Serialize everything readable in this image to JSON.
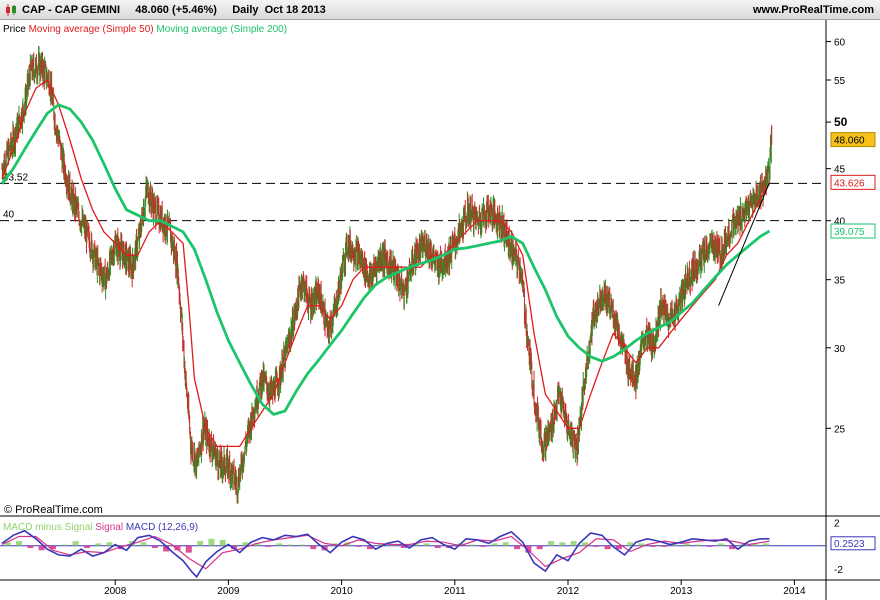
{
  "header": {
    "ticker": "CAP - CAP GEMINI",
    "last": "48.060 (+5.46%)",
    "period": "Daily",
    "date": "Oct 18 2013",
    "site": "www.ProRealTime.com"
  },
  "footer": {
    "copyright": "© ProRealTime.com"
  },
  "colors": {
    "price_up": "#2e8b22",
    "price_down": "#cc2a2a",
    "ma50": "#e01b1b",
    "ma200": "#1cc46a",
    "macd": "#3a38b8",
    "signal": "#d6338a",
    "histogram": "#8fd36a",
    "axis_text": "#000000"
  },
  "chart_data": [
    {
      "type": "line",
      "title": "",
      "scale": "log",
      "ylim": [
        20.5,
        63
      ],
      "x_ticks": [
        "2008",
        "2009",
        "2010",
        "2011",
        "2012",
        "2013",
        "2014"
      ],
      "y_ticks": [
        25,
        30,
        35,
        40,
        45,
        50,
        55,
        60
      ],
      "legend": [
        "Price",
        "Moving average (Simple 50)",
        "Moving average (Simple 200)"
      ],
      "legend_placement": "top-left",
      "levels": [
        {
          "value": 43.52,
          "label": "43.52"
        },
        {
          "value": 40,
          "label": "40"
        }
      ],
      "price_tags": [
        {
          "label": "48.060",
          "value": 48.06,
          "color": "#f6c11a"
        },
        {
          "label": "43.626",
          "value": 43.626,
          "color": "#e01b1b"
        },
        {
          "label": "39.075",
          "value": 39.075,
          "color": "#1cc46a"
        }
      ],
      "trendline": {
        "from": {
          "x": 2013.33,
          "y": 33
        },
        "to": {
          "x": 2013.78,
          "y": 43.6
        }
      },
      "series": [
        {
          "name": "Price",
          "x": [
            2007.0,
            2007.1,
            2007.2,
            2007.25,
            2007.33,
            2007.42,
            2007.47,
            2007.55,
            2007.62,
            2007.7,
            2007.78,
            2007.85,
            2007.92,
            2008.0,
            2008.08,
            2008.15,
            2008.22,
            2008.28,
            2008.35,
            2008.42,
            2008.48,
            2008.55,
            2008.62,
            2008.67,
            2008.72,
            2008.78,
            2008.85,
            2008.92,
            2009.0,
            2009.08,
            2009.15,
            2009.22,
            2009.3,
            2009.38,
            2009.45,
            2009.52,
            2009.58,
            2009.65,
            2009.72,
            2009.8,
            2009.88,
            2009.95,
            2010.05,
            2010.15,
            2010.25,
            2010.35,
            2010.45,
            2010.55,
            2010.65,
            2010.75,
            2010.85,
            2010.95,
            2011.05,
            2011.12,
            2011.2,
            2011.3,
            2011.4,
            2011.48,
            2011.52,
            2011.58,
            2011.65,
            2011.72,
            2011.78,
            2011.85,
            2011.92,
            2012.0,
            2012.08,
            2012.15,
            2012.22,
            2012.3,
            2012.38,
            2012.45,
            2012.52,
            2012.6,
            2012.68,
            2012.75,
            2012.82,
            2012.9,
            2012.98,
            2013.05,
            2013.12,
            2013.2,
            2013.28,
            2013.35,
            2013.42,
            2013.5,
            2013.58,
            2013.65,
            2013.72,
            2013.78,
            2013.8
          ],
          "y": [
            45,
            48,
            52,
            56,
            57,
            55,
            50,
            45,
            42,
            40,
            38,
            36,
            35,
            38,
            37,
            36,
            39,
            43,
            41,
            40,
            39,
            36,
            28,
            24,
            23,
            25,
            24,
            23,
            23,
            22,
            24,
            26,
            28,
            27,
            28,
            30,
            32,
            35,
            33,
            34,
            31,
            33,
            38,
            37,
            35,
            37,
            36,
            34,
            37,
            38,
            36,
            37,
            39,
            41,
            40,
            41,
            40,
            38,
            37,
            36,
            30,
            26,
            24,
            25,
            27,
            25,
            24,
            28,
            32,
            34,
            33,
            31,
            29,
            28,
            31,
            30,
            33,
            32,
            33,
            35,
            36,
            37,
            38,
            37,
            39,
            40,
            41,
            42,
            43,
            45,
            48.06
          ]
        },
        {
          "name": "Moving average (Simple 50)",
          "x": [
            2007.0,
            2007.1,
            2007.2,
            2007.3,
            2007.4,
            2007.5,
            2007.6,
            2007.7,
            2007.8,
            2007.9,
            2008.0,
            2008.1,
            2008.2,
            2008.3,
            2008.4,
            2008.5,
            2008.6,
            2008.65,
            2008.7,
            2008.8,
            2008.9,
            2009.0,
            2009.1,
            2009.2,
            2009.3,
            2009.4,
            2009.5,
            2009.6,
            2009.7,
            2009.8,
            2009.9,
            2010.0,
            2010.1,
            2010.2,
            2010.3,
            2010.4,
            2010.5,
            2010.6,
            2010.7,
            2010.8,
            2010.9,
            2011.0,
            2011.1,
            2011.2,
            2011.3,
            2011.4,
            2011.5,
            2011.6,
            2011.7,
            2011.8,
            2011.9,
            2012.0,
            2012.1,
            2012.2,
            2012.3,
            2012.4,
            2012.5,
            2012.6,
            2012.7,
            2012.8,
            2012.9,
            2013.0,
            2013.1,
            2013.2,
            2013.3,
            2013.4,
            2013.5,
            2013.6,
            2013.7,
            2013.78
          ],
          "y": [
            44,
            47,
            51,
            54,
            55,
            52,
            48,
            44,
            41,
            39,
            38,
            37,
            37,
            39,
            40,
            39,
            38,
            33,
            28,
            25,
            24,
            24,
            24,
            25,
            26,
            27,
            29,
            31,
            33,
            33,
            32,
            33,
            35,
            36,
            36,
            36,
            36,
            36,
            36,
            37,
            37,
            38,
            39,
            40,
            40,
            40,
            39,
            37,
            31,
            27,
            26,
            25,
            25,
            27,
            29,
            31,
            30,
            29,
            30,
            30,
            31,
            32,
            33,
            34,
            35,
            37,
            38,
            40,
            42,
            43.6
          ]
        },
        {
          "name": "Moving average (Simple 200)",
          "x": [
            2007.0,
            2007.1,
            2007.2,
            2007.3,
            2007.4,
            2007.5,
            2007.6,
            2007.7,
            2007.8,
            2007.9,
            2008.0,
            2008.1,
            2008.2,
            2008.3,
            2008.4,
            2008.5,
            2008.6,
            2008.7,
            2008.8,
            2008.9,
            2009.0,
            2009.1,
            2009.2,
            2009.3,
            2009.4,
            2009.5,
            2009.6,
            2009.7,
            2009.8,
            2009.9,
            2010.0,
            2010.1,
            2010.2,
            2010.3,
            2010.4,
            2010.5,
            2010.6,
            2010.7,
            2010.8,
            2010.9,
            2011.0,
            2011.1,
            2011.2,
            2011.3,
            2011.4,
            2011.5,
            2011.6,
            2011.7,
            2011.8,
            2011.9,
            2012.0,
            2012.1,
            2012.2,
            2012.3,
            2012.4,
            2012.5,
            2012.6,
            2012.7,
            2012.8,
            2012.9,
            2013.0,
            2013.1,
            2013.2,
            2013.3,
            2013.4,
            2013.5,
            2013.6,
            2013.7,
            2013.78
          ],
          "y": [
            43.5,
            45,
            47,
            49,
            51,
            52,
            51.5,
            50,
            48,
            45.5,
            43,
            41,
            40.5,
            40,
            40,
            39.5,
            39,
            37.5,
            35,
            32.5,
            30.5,
            29,
            27.6,
            26.4,
            25.8,
            26,
            27.2,
            28.3,
            29.2,
            30.2,
            31.2,
            32.4,
            33.6,
            34.6,
            35.2,
            35.6,
            36,
            36.3,
            36.6,
            37,
            37.5,
            37.6,
            37.8,
            38,
            38.2,
            38.6,
            38,
            36,
            34.2,
            32.2,
            30.8,
            30,
            29.4,
            29.1,
            29.4,
            29.9,
            30.5,
            31,
            31.4,
            31.8,
            32.5,
            33.2,
            34.2,
            35.2,
            36.2,
            37,
            37.8,
            38.6,
            39.075
          ]
        }
      ]
    },
    {
      "type": "line",
      "title": "",
      "legend": [
        "MACD minus Signal",
        "Signal",
        "MACD (12,26,9)"
      ],
      "y_ticks": [
        2,
        -2
      ],
      "ylim": [
        -2.8,
        2.4
      ],
      "last_value_tag": "0.2523",
      "series": [
        {
          "name": "MACD (12,26,9)",
          "x": [
            2007.0,
            2007.1,
            2007.2,
            2007.3,
            2007.4,
            2007.5,
            2007.6,
            2007.7,
            2007.8,
            2007.9,
            2008.0,
            2008.1,
            2008.2,
            2008.3,
            2008.4,
            2008.5,
            2008.6,
            2008.68,
            2008.72,
            2008.8,
            2008.9,
            2009.0,
            2009.1,
            2009.2,
            2009.3,
            2009.4,
            2009.5,
            2009.6,
            2009.7,
            2009.8,
            2009.9,
            2010.0,
            2010.1,
            2010.2,
            2010.3,
            2010.4,
            2010.5,
            2010.6,
            2010.7,
            2010.8,
            2010.9,
            2011.0,
            2011.1,
            2011.2,
            2011.3,
            2011.4,
            2011.5,
            2011.6,
            2011.7,
            2011.8,
            2011.9,
            2012.0,
            2012.1,
            2012.2,
            2012.3,
            2012.4,
            2012.5,
            2012.6,
            2012.7,
            2012.8,
            2012.9,
            2013.0,
            2013.1,
            2013.2,
            2013.3,
            2013.4,
            2013.5,
            2013.6,
            2013.7,
            2013.78
          ],
          "y": [
            0.2,
            0.9,
            1.3,
            0.6,
            -0.3,
            -0.8,
            -0.9,
            -0.3,
            -0.9,
            -0.6,
            0.1,
            -0.4,
            0.7,
            0.9,
            0.4,
            -0.5,
            -1.3,
            -2.3,
            -2.7,
            -1.4,
            -0.5,
            0.1,
            -0.6,
            0.3,
            0.7,
            0.5,
            0.9,
            0.8,
            1.0,
            0.1,
            -0.6,
            0.3,
            0.8,
            0.5,
            -0.3,
            0.2,
            0.4,
            -0.2,
            0.5,
            0.7,
            0.1,
            -0.3,
            0.6,
            0.5,
            0.2,
            0.8,
            1.2,
            0.3,
            -1.5,
            -2.2,
            -0.8,
            -1.3,
            0.2,
            1.1,
            0.9,
            -0.1,
            -0.8,
            0.3,
            0.6,
            0.4,
            0.1,
            0.3,
            0.6,
            0.5,
            0.4,
            0.6,
            -0.3,
            0.4,
            0.6,
            0.6
          ]
        },
        {
          "name": "Signal",
          "x": [
            2007.0,
            2007.15,
            2007.3,
            2007.45,
            2007.6,
            2007.75,
            2007.9,
            2008.05,
            2008.2,
            2008.35,
            2008.5,
            2008.65,
            2008.8,
            2008.95,
            2009.1,
            2009.25,
            2009.4,
            2009.55,
            2009.7,
            2009.85,
            2010.0,
            2010.15,
            2010.3,
            2010.45,
            2010.6,
            2010.75,
            2010.9,
            2011.05,
            2011.2,
            2011.35,
            2011.5,
            2011.65,
            2011.8,
            2011.95,
            2012.1,
            2012.25,
            2012.4,
            2012.55,
            2012.7,
            2012.85,
            2013.0,
            2013.15,
            2013.3,
            2013.45,
            2013.6,
            2013.78
          ],
          "y": [
            0.1,
            0.8,
            0.8,
            -0.4,
            -0.8,
            -0.5,
            -0.6,
            -0.1,
            0.3,
            0.8,
            0.1,
            -1.1,
            -2.0,
            -0.6,
            -0.3,
            0.2,
            0.5,
            0.7,
            0.9,
            0.2,
            0.0,
            0.5,
            0.2,
            0.1,
            0.1,
            0.4,
            0.3,
            0.0,
            0.5,
            0.4,
            0.8,
            -0.4,
            -1.8,
            -1.1,
            -0.6,
            0.6,
            0.5,
            -0.5,
            0.1,
            0.4,
            0.2,
            0.4,
            0.5,
            0.4,
            0.1,
            0.4
          ]
        },
        {
          "name": "MACD minus Signal",
          "x": [
            2007.05,
            2007.15,
            2007.25,
            2007.35,
            2007.45,
            2007.55,
            2007.65,
            2007.75,
            2007.85,
            2007.95,
            2008.05,
            2008.15,
            2008.25,
            2008.35,
            2008.45,
            2008.55,
            2008.65,
            2008.75,
            2008.85,
            2008.95,
            2009.05,
            2009.15,
            2009.25,
            2009.35,
            2009.45,
            2009.55,
            2009.65,
            2009.75,
            2009.85,
            2009.95,
            2010.05,
            2010.15,
            2010.25,
            2010.35,
            2010.45,
            2010.55,
            2010.65,
            2010.75,
            2010.85,
            2010.95,
            2011.05,
            2011.15,
            2011.25,
            2011.35,
            2011.45,
            2011.55,
            2011.65,
            2011.75,
            2011.85,
            2011.95,
            2012.05,
            2012.15,
            2012.25,
            2012.35,
            2012.45,
            2012.55,
            2012.65,
            2012.75,
            2012.85,
            2012.95,
            2013.05,
            2013.15,
            2013.25,
            2013.35,
            2013.45,
            2013.55,
            2013.65,
            2013.75
          ],
          "y": [
            0.3,
            0.4,
            -0.2,
            -0.4,
            -0.3,
            0.1,
            0.4,
            -0.2,
            0.2,
            0.3,
            -0.3,
            0.4,
            0.3,
            -0.2,
            -0.5,
            -0.4,
            -0.6,
            0.4,
            0.6,
            0.5,
            -0.3,
            0.3,
            0.2,
            -0.1,
            0.2,
            0.1,
            0.1,
            -0.3,
            -0.4,
            0.2,
            0.3,
            -0.1,
            -0.3,
            0.2,
            0.1,
            -0.2,
            0.2,
            0.2,
            -0.2,
            -0.2,
            0.2,
            0.1,
            -0.1,
            0.2,
            0.3,
            -0.3,
            -0.6,
            -0.3,
            0.4,
            0.3,
            0.4,
            0.3,
            -0.1,
            -0.3,
            -0.3,
            0.3,
            0.2,
            -0.1,
            -0.1,
            0.1,
            0.2,
            0.1,
            -0.1,
            0.2,
            -0.3,
            0.2,
            0.2,
            0.2
          ]
        }
      ]
    }
  ]
}
